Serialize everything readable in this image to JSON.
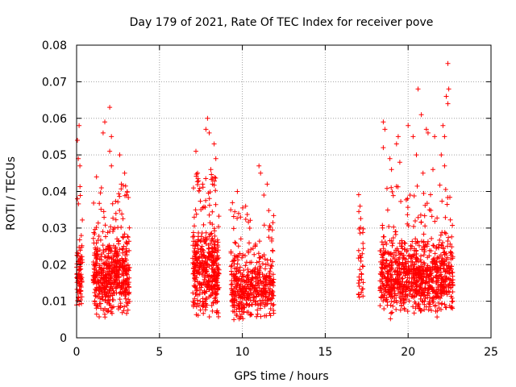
{
  "chart_data": {
    "type": "scatter",
    "title": "Day 179 of 2021, Rate Of TEC Index for receiver pove",
    "xlabel": "GPS time / hours",
    "ylabel": "ROTI / TECUs",
    "xlim": [
      0,
      25
    ],
    "ylim": [
      0,
      0.08
    ],
    "x_ticks": [
      0,
      5,
      10,
      15,
      20,
      25
    ],
    "x_tick_labels": [
      "0",
      "5",
      "10",
      "15",
      "20",
      "25"
    ],
    "y_ticks": [
      0,
      0.01,
      0.02,
      0.03,
      0.04,
      0.05,
      0.06,
      0.07,
      0.08
    ],
    "y_tick_labels": [
      "0",
      "0.01",
      "0.02",
      "0.03",
      "0.04",
      "0.05",
      "0.06",
      "0.07",
      "0.08"
    ],
    "grid": true,
    "marker": "+",
    "color": "#ff0000",
    "series": [
      {
        "name": "ROTI",
        "clusters": [
          {
            "x_range": [
              -0.05,
              0.35
            ],
            "y_range": [
              0.006,
              0.03
            ],
            "count": 90
          },
          {
            "x_range": [
              1.0,
              3.2
            ],
            "y_range": [
              0.005,
              0.03
            ],
            "count": 520
          },
          {
            "x_range": [
              7.0,
              8.6
            ],
            "y_range": [
              0.005,
              0.033
            ],
            "count": 420
          },
          {
            "x_range": [
              9.3,
              11.9
            ],
            "y_range": [
              0.004,
              0.025
            ],
            "count": 460
          },
          {
            "x_range": [
              17.0,
              17.3
            ],
            "y_range": [
              0.008,
              0.032
            ],
            "count": 35
          },
          {
            "x_range": [
              18.3,
              22.7
            ],
            "y_range": [
              0.005,
              0.03
            ],
            "count": 900
          }
        ],
        "notable_points": [
          {
            "x": 0.05,
            "y": 0.054
          },
          {
            "x": 0.1,
            "y": 0.049
          },
          {
            "x": 0.15,
            "y": 0.058
          },
          {
            "x": 0.05,
            "y": 0.038
          },
          {
            "x": 0.2,
            "y": 0.047
          },
          {
            "x": 1.2,
            "y": 0.044
          },
          {
            "x": 1.6,
            "y": 0.056
          },
          {
            "x": 1.7,
            "y": 0.059
          },
          {
            "x": 2.0,
            "y": 0.063
          },
          {
            "x": 2.1,
            "y": 0.055
          },
          {
            "x": 2.1,
            "y": 0.047
          },
          {
            "x": 2.0,
            "y": 0.051
          },
          {
            "x": 2.6,
            "y": 0.05
          },
          {
            "x": 2.7,
            "y": 0.042
          },
          {
            "x": 2.9,
            "y": 0.045
          },
          {
            "x": 1.5,
            "y": 0.041
          },
          {
            "x": 7.2,
            "y": 0.051
          },
          {
            "x": 7.3,
            "y": 0.045
          },
          {
            "x": 7.9,
            "y": 0.06
          },
          {
            "x": 7.8,
            "y": 0.057
          },
          {
            "x": 8.0,
            "y": 0.056
          },
          {
            "x": 8.3,
            "y": 0.053
          },
          {
            "x": 8.4,
            "y": 0.049
          },
          {
            "x": 8.1,
            "y": 0.046
          },
          {
            "x": 7.6,
            "y": 0.042
          },
          {
            "x": 8.2,
            "y": 0.042
          },
          {
            "x": 9.7,
            "y": 0.04
          },
          {
            "x": 10.2,
            "y": 0.036
          },
          {
            "x": 11.0,
            "y": 0.047
          },
          {
            "x": 11.1,
            "y": 0.045
          },
          {
            "x": 11.5,
            "y": 0.042
          },
          {
            "x": 11.3,
            "y": 0.039
          },
          {
            "x": 9.3,
            "y": 0.035
          },
          {
            "x": 17.1,
            "y": 0.036
          },
          {
            "x": 18.5,
            "y": 0.059
          },
          {
            "x": 18.6,
            "y": 0.057
          },
          {
            "x": 18.5,
            "y": 0.052
          },
          {
            "x": 18.9,
            "y": 0.049
          },
          {
            "x": 19.4,
            "y": 0.055
          },
          {
            "x": 19.3,
            "y": 0.053
          },
          {
            "x": 19.5,
            "y": 0.048
          },
          {
            "x": 20.0,
            "y": 0.058
          },
          {
            "x": 20.3,
            "y": 0.055
          },
          {
            "x": 20.6,
            "y": 0.068
          },
          {
            "x": 20.8,
            "y": 0.061
          },
          {
            "x": 21.1,
            "y": 0.057
          },
          {
            "x": 21.2,
            "y": 0.056
          },
          {
            "x": 20.5,
            "y": 0.05
          },
          {
            "x": 21.6,
            "y": 0.055
          },
          {
            "x": 22.1,
            "y": 0.058
          },
          {
            "x": 22.2,
            "y": 0.055
          },
          {
            "x": 22.4,
            "y": 0.075
          },
          {
            "x": 22.45,
            "y": 0.068
          },
          {
            "x": 22.3,
            "y": 0.066
          },
          {
            "x": 22.4,
            "y": 0.064
          },
          {
            "x": 22.0,
            "y": 0.05
          },
          {
            "x": 22.2,
            "y": 0.047
          },
          {
            "x": 21.5,
            "y": 0.046
          },
          {
            "x": 20.9,
            "y": 0.045
          },
          {
            "x": 19.0,
            "y": 0.046
          }
        ]
      }
    ]
  }
}
